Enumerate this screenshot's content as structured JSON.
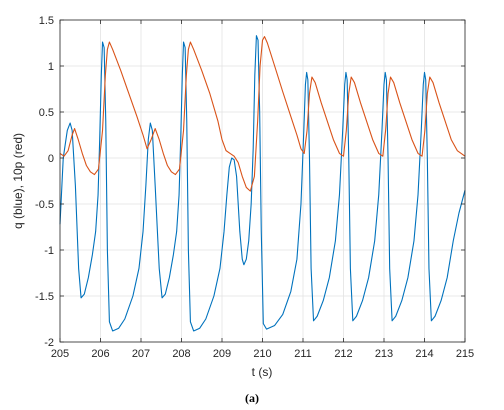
{
  "caption": "(a)",
  "chart_data": {
    "type": "line",
    "title": "",
    "xlabel": "t (s)",
    "ylabel": "q (blue), 10p (red)",
    "xlim": [
      205,
      215
    ],
    "ylim": [
      -2,
      1.5
    ],
    "xticks": [
      205,
      206,
      207,
      208,
      209,
      210,
      211,
      212,
      213,
      214,
      215
    ],
    "yticks": [
      -2,
      -1.5,
      -1,
      -0.5,
      0,
      0.5,
      1,
      1.5
    ],
    "xtick_labels": [
      "205",
      "206",
      "207",
      "208",
      "209",
      "210",
      "211",
      "212",
      "213",
      "214",
      "215"
    ],
    "ytick_labels": [
      "-2",
      "-1.5",
      "-1",
      "-0.5",
      "0",
      "0.5",
      "1",
      "1.5"
    ],
    "grid": true,
    "legend": "none",
    "series": [
      {
        "color": "#0072BD",
        "points": [
          [
            205.0,
            -0.72
          ],
          [
            205.08,
            0.0
          ],
          [
            205.18,
            0.3
          ],
          [
            205.25,
            0.38
          ],
          [
            205.3,
            0.3
          ],
          [
            205.38,
            -0.3
          ],
          [
            205.46,
            -1.2
          ],
          [
            205.52,
            -1.52
          ],
          [
            205.6,
            -1.48
          ],
          [
            205.7,
            -1.3
          ],
          [
            205.8,
            -1.05
          ],
          [
            205.88,
            -0.8
          ],
          [
            205.94,
            -0.4
          ],
          [
            205.98,
            0.2
          ],
          [
            206.02,
            0.9
          ],
          [
            206.05,
            1.26
          ],
          [
            206.09,
            1.2
          ],
          [
            206.13,
            0.4
          ],
          [
            206.17,
            -1.0
          ],
          [
            206.22,
            -1.78
          ],
          [
            206.3,
            -1.88
          ],
          [
            206.45,
            -1.85
          ],
          [
            206.6,
            -1.75
          ],
          [
            206.8,
            -1.5
          ],
          [
            206.95,
            -1.2
          ],
          [
            207.05,
            -0.8
          ],
          [
            207.12,
            -0.3
          ],
          [
            207.18,
            0.2
          ],
          [
            207.23,
            0.38
          ],
          [
            207.28,
            0.3
          ],
          [
            207.35,
            -0.3
          ],
          [
            207.45,
            -1.2
          ],
          [
            207.52,
            -1.52
          ],
          [
            207.6,
            -1.48
          ],
          [
            207.7,
            -1.3
          ],
          [
            207.8,
            -1.05
          ],
          [
            207.88,
            -0.8
          ],
          [
            207.94,
            -0.4
          ],
          [
            207.98,
            0.2
          ],
          [
            208.02,
            0.9
          ],
          [
            208.05,
            1.26
          ],
          [
            208.09,
            1.2
          ],
          [
            208.13,
            0.4
          ],
          [
            208.17,
            -1.0
          ],
          [
            208.22,
            -1.78
          ],
          [
            208.3,
            -1.88
          ],
          [
            208.45,
            -1.85
          ],
          [
            208.6,
            -1.75
          ],
          [
            208.8,
            -1.5
          ],
          [
            208.95,
            -1.2
          ],
          [
            209.05,
            -0.8
          ],
          [
            209.12,
            -0.4
          ],
          [
            209.18,
            -0.1
          ],
          [
            209.24,
            0.0
          ],
          [
            209.3,
            -0.02
          ],
          [
            209.36,
            -0.2
          ],
          [
            209.44,
            -0.8
          ],
          [
            209.5,
            -1.1
          ],
          [
            209.54,
            -1.16
          ],
          [
            209.6,
            -1.1
          ],
          [
            209.66,
            -0.9
          ],
          [
            209.72,
            -0.5
          ],
          [
            209.77,
            0.1
          ],
          [
            209.81,
            0.9
          ],
          [
            209.85,
            1.33
          ],
          [
            209.89,
            1.28
          ],
          [
            209.93,
            0.5
          ],
          [
            209.97,
            -0.8
          ],
          [
            210.02,
            -1.8
          ],
          [
            210.1,
            -1.86
          ],
          [
            210.3,
            -1.82
          ],
          [
            210.5,
            -1.7
          ],
          [
            210.7,
            -1.45
          ],
          [
            210.85,
            -1.1
          ],
          [
            210.95,
            -0.5
          ],
          [
            211.02,
            0.3
          ],
          [
            211.06,
            0.8
          ],
          [
            211.09,
            0.93
          ],
          [
            211.12,
            0.85
          ],
          [
            211.16,
            0.0
          ],
          [
            211.2,
            -1.2
          ],
          [
            211.26,
            -1.77
          ],
          [
            211.35,
            -1.72
          ],
          [
            211.5,
            -1.55
          ],
          [
            211.65,
            -1.3
          ],
          [
            211.8,
            -0.9
          ],
          [
            211.9,
            -0.4
          ],
          [
            211.98,
            0.3
          ],
          [
            212.03,
            0.8
          ],
          [
            212.06,
            0.93
          ],
          [
            212.09,
            0.85
          ],
          [
            212.13,
            0.0
          ],
          [
            212.17,
            -1.2
          ],
          [
            212.23,
            -1.77
          ],
          [
            212.32,
            -1.72
          ],
          [
            212.47,
            -1.55
          ],
          [
            212.62,
            -1.3
          ],
          [
            212.77,
            -0.9
          ],
          [
            212.87,
            -0.4
          ],
          [
            212.95,
            0.3
          ],
          [
            213.0,
            0.8
          ],
          [
            213.03,
            0.93
          ],
          [
            213.06,
            0.85
          ],
          [
            213.1,
            0.0
          ],
          [
            213.14,
            -1.2
          ],
          [
            213.2,
            -1.77
          ],
          [
            213.29,
            -1.72
          ],
          [
            213.44,
            -1.55
          ],
          [
            213.59,
            -1.3
          ],
          [
            213.74,
            -0.9
          ],
          [
            213.84,
            -0.4
          ],
          [
            213.92,
            0.3
          ],
          [
            213.97,
            0.8
          ],
          [
            214.0,
            0.93
          ],
          [
            214.03,
            0.85
          ],
          [
            214.07,
            0.0
          ],
          [
            214.11,
            -1.2
          ],
          [
            214.17,
            -1.77
          ],
          [
            214.26,
            -1.72
          ],
          [
            214.41,
            -1.55
          ],
          [
            214.56,
            -1.3
          ],
          [
            214.71,
            -0.9
          ],
          [
            214.85,
            -0.6
          ],
          [
            215.0,
            -0.35
          ]
        ]
      },
      {
        "color": "#D95319",
        "points": [
          [
            205.0,
            0.05
          ],
          [
            205.1,
            0.02
          ],
          [
            205.2,
            0.08
          ],
          [
            205.3,
            0.25
          ],
          [
            205.36,
            0.32
          ],
          [
            205.45,
            0.2
          ],
          [
            205.55,
            0.05
          ],
          [
            205.65,
            -0.08
          ],
          [
            205.75,
            -0.15
          ],
          [
            205.85,
            -0.18
          ],
          [
            205.95,
            -0.12
          ],
          [
            206.05,
            0.3
          ],
          [
            206.12,
            0.9
          ],
          [
            206.17,
            1.18
          ],
          [
            206.22,
            1.26
          ],
          [
            206.3,
            1.18
          ],
          [
            206.5,
            0.95
          ],
          [
            206.7,
            0.7
          ],
          [
            206.9,
            0.45
          ],
          [
            207.05,
            0.25
          ],
          [
            207.15,
            0.1
          ],
          [
            207.25,
            0.2
          ],
          [
            207.35,
            0.32
          ],
          [
            207.45,
            0.2
          ],
          [
            207.55,
            0.05
          ],
          [
            207.65,
            -0.08
          ],
          [
            207.75,
            -0.15
          ],
          [
            207.85,
            -0.18
          ],
          [
            207.95,
            -0.12
          ],
          [
            208.05,
            0.3
          ],
          [
            208.12,
            0.9
          ],
          [
            208.17,
            1.18
          ],
          [
            208.22,
            1.26
          ],
          [
            208.3,
            1.18
          ],
          [
            208.5,
            0.95
          ],
          [
            208.7,
            0.7
          ],
          [
            208.9,
            0.4
          ],
          [
            209.0,
            0.2
          ],
          [
            209.1,
            0.08
          ],
          [
            209.2,
            0.05
          ],
          [
            209.3,
            0.02
          ],
          [
            209.4,
            -0.05
          ],
          [
            209.5,
            -0.2
          ],
          [
            209.6,
            -0.32
          ],
          [
            209.7,
            -0.36
          ],
          [
            209.8,
            -0.2
          ],
          [
            209.88,
            0.4
          ],
          [
            209.94,
            1.0
          ],
          [
            210.0,
            1.28
          ],
          [
            210.05,
            1.32
          ],
          [
            210.12,
            1.25
          ],
          [
            210.3,
            1.0
          ],
          [
            210.5,
            0.72
          ],
          [
            210.7,
            0.45
          ],
          [
            210.85,
            0.25
          ],
          [
            210.95,
            0.1
          ],
          [
            211.03,
            0.05
          ],
          [
            211.1,
            0.3
          ],
          [
            211.16,
            0.7
          ],
          [
            211.22,
            0.88
          ],
          [
            211.3,
            0.82
          ],
          [
            211.45,
            0.6
          ],
          [
            211.6,
            0.4
          ],
          [
            211.75,
            0.2
          ],
          [
            211.9,
            0.05
          ],
          [
            212.0,
            0.02
          ],
          [
            212.07,
            0.3
          ],
          [
            212.13,
            0.7
          ],
          [
            212.19,
            0.88
          ],
          [
            212.27,
            0.82
          ],
          [
            212.42,
            0.6
          ],
          [
            212.57,
            0.4
          ],
          [
            212.72,
            0.2
          ],
          [
            212.87,
            0.05
          ],
          [
            212.97,
            0.02
          ],
          [
            213.04,
            0.3
          ],
          [
            213.1,
            0.7
          ],
          [
            213.16,
            0.88
          ],
          [
            213.24,
            0.82
          ],
          [
            213.39,
            0.6
          ],
          [
            213.54,
            0.4
          ],
          [
            213.69,
            0.2
          ],
          [
            213.84,
            0.05
          ],
          [
            213.94,
            0.02
          ],
          [
            214.01,
            0.3
          ],
          [
            214.07,
            0.7
          ],
          [
            214.13,
            0.88
          ],
          [
            214.21,
            0.82
          ],
          [
            214.36,
            0.6
          ],
          [
            214.51,
            0.4
          ],
          [
            214.66,
            0.2
          ],
          [
            214.81,
            0.08
          ],
          [
            215.0,
            0.02
          ]
        ]
      }
    ]
  }
}
